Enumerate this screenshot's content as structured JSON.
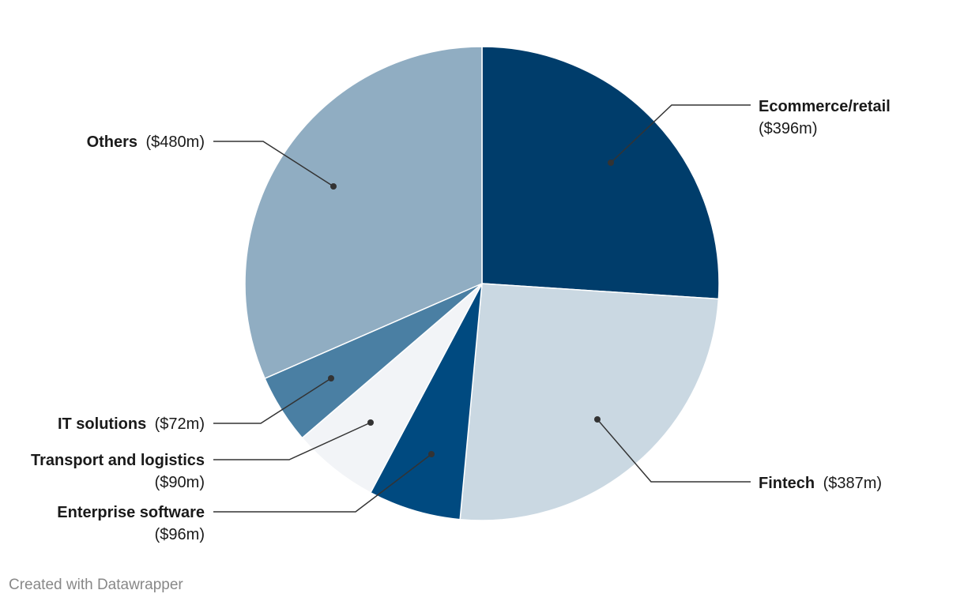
{
  "credit": "Created with Datawrapper",
  "chart_data": {
    "type": "pie",
    "title": "",
    "legend": "none",
    "slices": [
      {
        "name": "Ecommerce/retail",
        "label": "($396m)",
        "value": 396,
        "color": "#003d6b"
      },
      {
        "name": "Fintech",
        "label": "($387m)",
        "value": 387,
        "color": "#cad8e2"
      },
      {
        "name": "Enterprise software",
        "label": "($96m)",
        "value": 96,
        "color": "#004a80"
      },
      {
        "name": "Transport and logistics",
        "label": "($90m)",
        "value": 90,
        "color": "#f2f4f7"
      },
      {
        "name": "IT solutions",
        "label": "($72m)",
        "value": 72,
        "color": "#4a7fa3"
      },
      {
        "name": "Others",
        "label": "($480m)",
        "value": 480,
        "color": "#90adc2"
      }
    ]
  }
}
